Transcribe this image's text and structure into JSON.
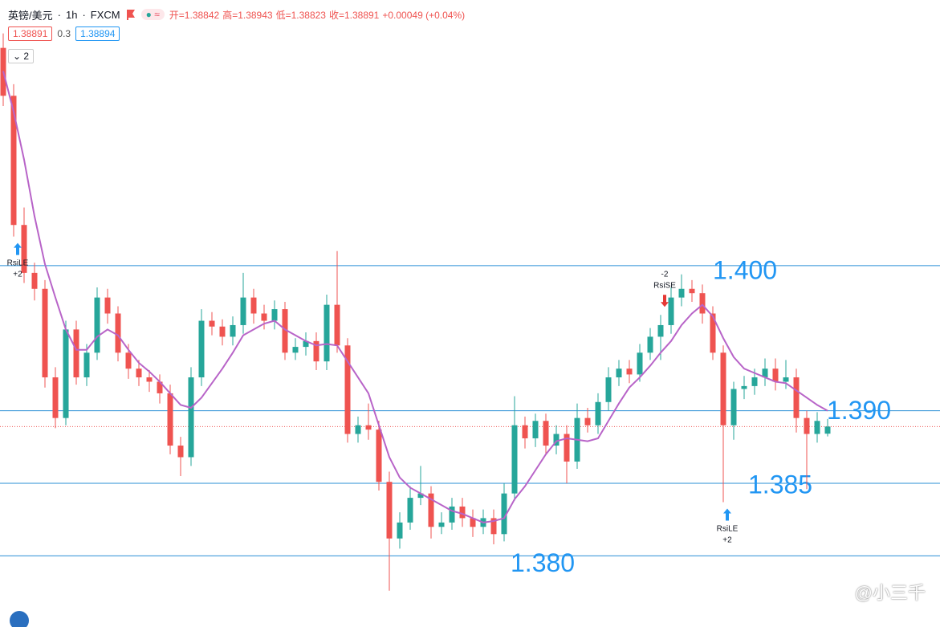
{
  "chart_data": {
    "type": "candlestick",
    "header": {
      "symbol": "英镑/美元",
      "interval": "1h",
      "source": "FXCM",
      "ohlc": [
        "开=1.38842",
        "高=1.38943",
        "低=1.38823",
        "收=1.38891",
        "+0.00049 (+0.04%)"
      ],
      "bid": "1.38891",
      "spread": "0.3",
      "ask": "1.38894",
      "collapse": "2"
    },
    "watermark": "@小三千",
    "ylim": [
      1.3751,
      1.4183
    ],
    "up_color": "#26a69a",
    "down_color": "#ef5350",
    "candles": {
      "open": [
        1.415,
        1.4117,
        1.4028,
        1.3995,
        1.3984,
        1.3923,
        1.3895,
        1.3956,
        1.3923,
        1.394,
        1.3978,
        1.3967,
        1.394,
        1.3929,
        1.3923,
        1.392,
        1.3912,
        1.3876,
        1.3868,
        1.3923,
        1.3962,
        1.3958,
        1.3951,
        1.3959,
        1.3978,
        1.3967,
        1.3962,
        1.397,
        1.394,
        1.3944,
        1.3948,
        1.3934,
        1.3973,
        1.3945,
        1.3884,
        1.389,
        1.3887,
        1.3851,
        1.3812,
        1.3823,
        1.384,
        1.3843,
        1.382,
        1.3823,
        1.3834,
        1.3826,
        1.382,
        1.3826,
        1.3815,
        1.3843,
        1.389,
        1.3881,
        1.3893,
        1.3876,
        1.3884,
        1.3865,
        1.3895,
        1.389,
        1.3906,
        1.3923,
        1.3929,
        1.3925,
        1.394,
        1.3951,
        1.3959,
        1.3978,
        1.3984,
        1.3981,
        1.3967,
        1.394,
        1.389,
        1.3915,
        1.3917,
        1.3923,
        1.3929,
        1.392,
        1.3923,
        1.3895,
        1.3884,
        1.38842
      ],
      "high": [
        1.416,
        1.4125,
        1.404,
        1.4002,
        1.399,
        1.393,
        1.3962,
        1.3962,
        1.3946,
        1.3985,
        1.3984,
        1.3972,
        1.3946,
        1.3935,
        1.3928,
        1.3925,
        1.3918,
        1.3882,
        1.393,
        1.397,
        1.3968,
        1.3963,
        1.3965,
        1.3995,
        1.3984,
        1.3973,
        1.3976,
        1.3975,
        1.395,
        1.3954,
        1.3954,
        1.398,
        1.401,
        1.395,
        1.3896,
        1.3905,
        1.3893,
        1.3858,
        1.383,
        1.3848,
        1.3862,
        1.3848,
        1.383,
        1.384,
        1.384,
        1.3832,
        1.3832,
        1.3832,
        1.385,
        1.391,
        1.3896,
        1.3898,
        1.3898,
        1.389,
        1.389,
        1.3905,
        1.3902,
        1.3912,
        1.393,
        1.3935,
        1.3935,
        1.3946,
        1.3957,
        1.3966,
        1.3985,
        1.3994,
        1.399,
        1.3987,
        1.3972,
        1.3945,
        1.392,
        1.3924,
        1.3929,
        1.3936,
        1.3936,
        1.3935,
        1.3929,
        1.39,
        1.3899,
        1.38943
      ],
      "low": [
        1.411,
        1.402,
        1.3988,
        1.3976,
        1.3916,
        1.3888,
        1.389,
        1.3918,
        1.3917,
        1.3935,
        1.396,
        1.3934,
        1.3922,
        1.3917,
        1.3913,
        1.3905,
        1.387,
        1.3855,
        1.3862,
        1.3917,
        1.3952,
        1.3945,
        1.3945,
        1.3953,
        1.396,
        1.3956,
        1.3956,
        1.3935,
        1.3935,
        1.3938,
        1.3928,
        1.3928,
        1.394,
        1.3878,
        1.3878,
        1.388,
        1.3845,
        1.3776,
        1.3805,
        1.3818,
        1.3835,
        1.3812,
        1.3815,
        1.3818,
        1.382,
        1.3813,
        1.3815,
        1.3808,
        1.381,
        1.3838,
        1.3874,
        1.3875,
        1.387,
        1.387,
        1.385,
        1.386,
        1.3885,
        1.3884,
        1.39,
        1.3917,
        1.3919,
        1.392,
        1.3935,
        1.3935,
        1.3953,
        1.3972,
        1.3975,
        1.396,
        1.3935,
        1.3837,
        1.388,
        1.3908,
        1.3911,
        1.3917,
        1.3914,
        1.3915,
        1.3885,
        1.3846,
        1.3878,
        1.38823
      ],
      "close": [
        1.4117,
        1.4028,
        1.3995,
        1.3984,
        1.3923,
        1.3895,
        1.3956,
        1.3923,
        1.394,
        1.3978,
        1.3967,
        1.394,
        1.3929,
        1.3923,
        1.392,
        1.3912,
        1.3876,
        1.3868,
        1.3923,
        1.3962,
        1.3958,
        1.3951,
        1.3959,
        1.3978,
        1.3967,
        1.3962,
        1.397,
        1.394,
        1.3944,
        1.3948,
        1.3934,
        1.3973,
        1.3945,
        1.3884,
        1.389,
        1.3887,
        1.3851,
        1.3812,
        1.3823,
        1.384,
        1.3843,
        1.382,
        1.3823,
        1.3834,
        1.3826,
        1.382,
        1.3826,
        1.3815,
        1.3843,
        1.389,
        1.3881,
        1.3893,
        1.3876,
        1.3884,
        1.3865,
        1.3895,
        1.389,
        1.3906,
        1.3923,
        1.3929,
        1.3925,
        1.394,
        1.3951,
        1.3959,
        1.3978,
        1.3984,
        1.3981,
        1.3967,
        1.394,
        1.389,
        1.3915,
        1.3917,
        1.3923,
        1.3929,
        1.392,
        1.3923,
        1.3895,
        1.3884,
        1.3893,
        1.38891
      ]
    },
    "ma": {
      "color": "#b864c8",
      "values": [
        1.4134,
        1.4106,
        1.4073,
        1.4034,
        1.4001,
        1.3978,
        1.3956,
        1.3942,
        1.3942,
        1.3951,
        1.3956,
        1.3952,
        1.3942,
        1.3933,
        1.3927,
        1.392,
        1.3912,
        1.3904,
        1.3902,
        1.3909,
        1.3919,
        1.3929,
        1.394,
        1.3952,
        1.3956,
        1.396,
        1.3962,
        1.3956,
        1.3952,
        1.3948,
        1.3945,
        1.3946,
        1.3945,
        1.3934,
        1.3923,
        1.3912,
        1.389,
        1.3868,
        1.3854,
        1.3847,
        1.3843,
        1.3839,
        1.3835,
        1.3831,
        1.3829,
        1.3826,
        1.3823,
        1.3824,
        1.3826,
        1.3839,
        1.3848,
        1.3859,
        1.387,
        1.3879,
        1.3881,
        1.388,
        1.3879,
        1.3881,
        1.3893,
        1.3905,
        1.3916,
        1.3923,
        1.3931,
        1.394,
        1.3948,
        1.3959,
        1.3967,
        1.3973,
        1.3965,
        1.395,
        1.3937,
        1.3929,
        1.3926,
        1.3923,
        1.392,
        1.3919,
        1.3914,
        1.3909,
        1.3904,
        1.39
      ]
    },
    "signals": [
      {
        "name": "RsiLE",
        "qty": "+2",
        "side": "long"
      },
      {
        "name": "RsiSE",
        "qty": "-2",
        "side": "short"
      },
      {
        "name": "RsiLE",
        "qty": "+2",
        "side": "long"
      }
    ],
    "level_color": "#2a8fd6",
    "levels": [
      {
        "value": 1.4,
        "label": "1.400"
      },
      {
        "value": 1.39,
        "label": "1.390"
      },
      {
        "value": 1.385,
        "label": "1.385"
      },
      {
        "value": 1.38,
        "label": "1.380"
      }
    ]
  }
}
